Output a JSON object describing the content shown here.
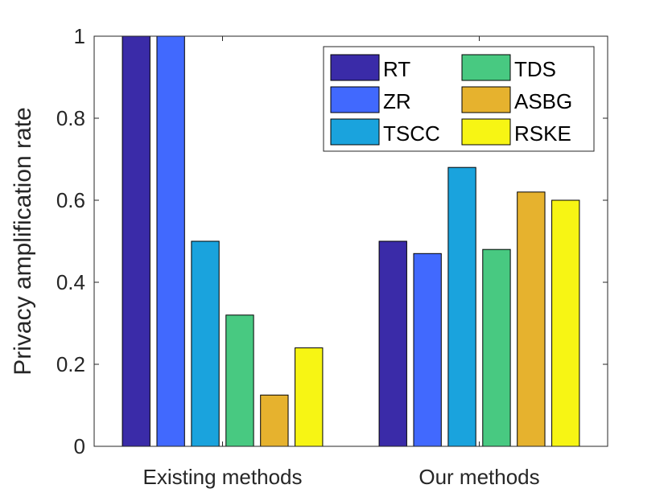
{
  "chart_data": {
    "type": "bar",
    "title": "",
    "xlabel": "",
    "ylabel": "Privacy amplification rate",
    "ylim": [
      0,
      1
    ],
    "yticks": [
      0,
      0.2,
      0.4,
      0.6,
      0.8,
      1
    ],
    "ytick_labels": [
      "0",
      "0.2",
      "0.4",
      "0.6",
      "0.8",
      "1"
    ],
    "categories": [
      "Existing methods",
      "Our methods"
    ],
    "series": [
      {
        "name": "RT",
        "color": "#3a2ba8",
        "values": [
          1.0,
          0.5
        ]
      },
      {
        "name": "ZR",
        "color": "#4169fe",
        "values": [
          1.0,
          0.47
        ]
      },
      {
        "name": "TSCC",
        "color": "#1aa3dd",
        "values": [
          0.5,
          0.68
        ]
      },
      {
        "name": "TDS",
        "color": "#48c981",
        "values": [
          0.32,
          0.48
        ]
      },
      {
        "name": "ASBG",
        "color": "#e6b22e",
        "values": [
          0.125,
          0.62
        ]
      },
      {
        "name": "RSKE",
        "color": "#f7f514",
        "values": [
          0.24,
          0.6
        ]
      }
    ],
    "legend": {
      "placement": "top-right",
      "columns": 2
    },
    "grid": false
  }
}
